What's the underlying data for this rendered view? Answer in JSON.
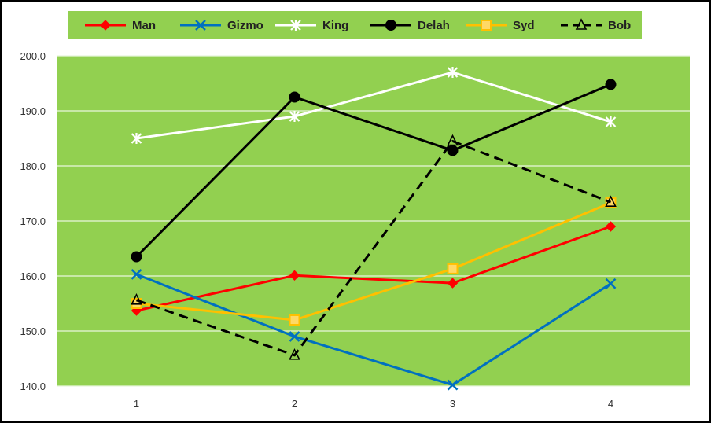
{
  "chart_data": {
    "type": "line",
    "title": "",
    "xlabel": "",
    "ylabel": "",
    "x": [
      1,
      2,
      3,
      4
    ],
    "x_tick_labels": [
      "1",
      "2",
      "3",
      "4"
    ],
    "ylim": [
      140,
      200
    ],
    "y_ticks": [
      140,
      150,
      160,
      170,
      180,
      190,
      200
    ],
    "y_tick_labels": [
      "140.0",
      "150.0",
      "160.0",
      "170.0",
      "180.0",
      "190.0",
      "200.0"
    ],
    "grid": "horizontal",
    "legend_position": "top",
    "plot_background": "#92d050",
    "series": [
      {
        "name": "Man",
        "values": [
          153.7,
          160.1,
          158.7,
          169.0
        ],
        "color": "#ff0000",
        "marker": "diamond",
        "dash": "solid"
      },
      {
        "name": "Gizmo",
        "values": [
          160.3,
          149.0,
          140.2,
          158.6
        ],
        "color": "#0070c0",
        "marker": "x",
        "dash": "solid"
      },
      {
        "name": "King",
        "values": [
          185.0,
          189.0,
          197.0,
          188.0
        ],
        "color": "#ffffff",
        "marker": "star",
        "dash": "solid"
      },
      {
        "name": "Delah",
        "values": [
          163.5,
          192.5,
          182.8,
          194.8
        ],
        "color": "#000000",
        "marker": "circle",
        "dash": "solid"
      },
      {
        "name": "Syd",
        "values": [
          155.0,
          152.0,
          161.3,
          173.3
        ],
        "color": "#ffc000",
        "marker": "square",
        "dash": "solid"
      },
      {
        "name": "Bob",
        "values": [
          155.6,
          145.6,
          184.5,
          173.4
        ],
        "color": "#000000",
        "marker": "triangle",
        "dash": "dashed"
      }
    ]
  }
}
